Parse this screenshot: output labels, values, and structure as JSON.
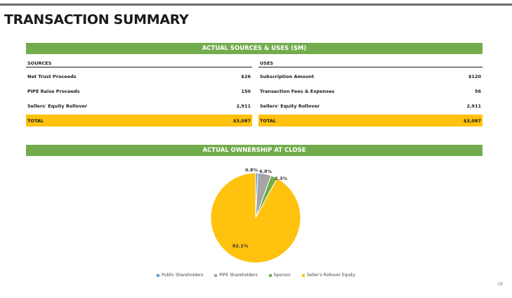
{
  "header": {
    "title": "TRANSACTION SUMMARY"
  },
  "sources_uses": {
    "banner": "ACTUAL SOURCES & USES ($M)",
    "sources": {
      "heading": "SOURCES",
      "rows": [
        {
          "label": "Net Trust Proceeds",
          "value": "$26"
        },
        {
          "label": "PIPE Raise Proceeds",
          "value": "150"
        },
        {
          "label": "Sellers' Equity Rollover",
          "value": "2,911"
        }
      ],
      "total": {
        "label": "TOTAL",
        "value": "$3,087"
      }
    },
    "uses": {
      "heading": "USES",
      "rows": [
        {
          "label": "Subscription Amount",
          "value": "$120"
        },
        {
          "label": "Transaction Fees & Expenses",
          "value": "56"
        },
        {
          "label": "Sellers' Equity Rollover",
          "value": "2,911"
        }
      ],
      "total": {
        "label": "TOTAL",
        "value": "$3,087"
      }
    }
  },
  "ownership": {
    "banner": "ACTUAL OWNERSHIP AT CLOSE"
  },
  "chart_data": {
    "type": "pie",
    "title": "",
    "slices": [
      {
        "name": "Public Shareholders",
        "value": 0.8,
        "label": "0.8%",
        "color": "#5b9bd5"
      },
      {
        "name": "PIPE Shareholders",
        "value": 4.8,
        "label": "4.8%",
        "color": "#a5a5a5"
      },
      {
        "name": "Sponsor",
        "value": 2.3,
        "label": "2.3%",
        "color": "#70ad47"
      },
      {
        "name": "Seller's Rollover Equity",
        "value": 92.1,
        "label": "92.1%",
        "color": "#ffc20e"
      }
    ],
    "legend_position": "bottom"
  },
  "footer": {
    "page_number": "28"
  }
}
